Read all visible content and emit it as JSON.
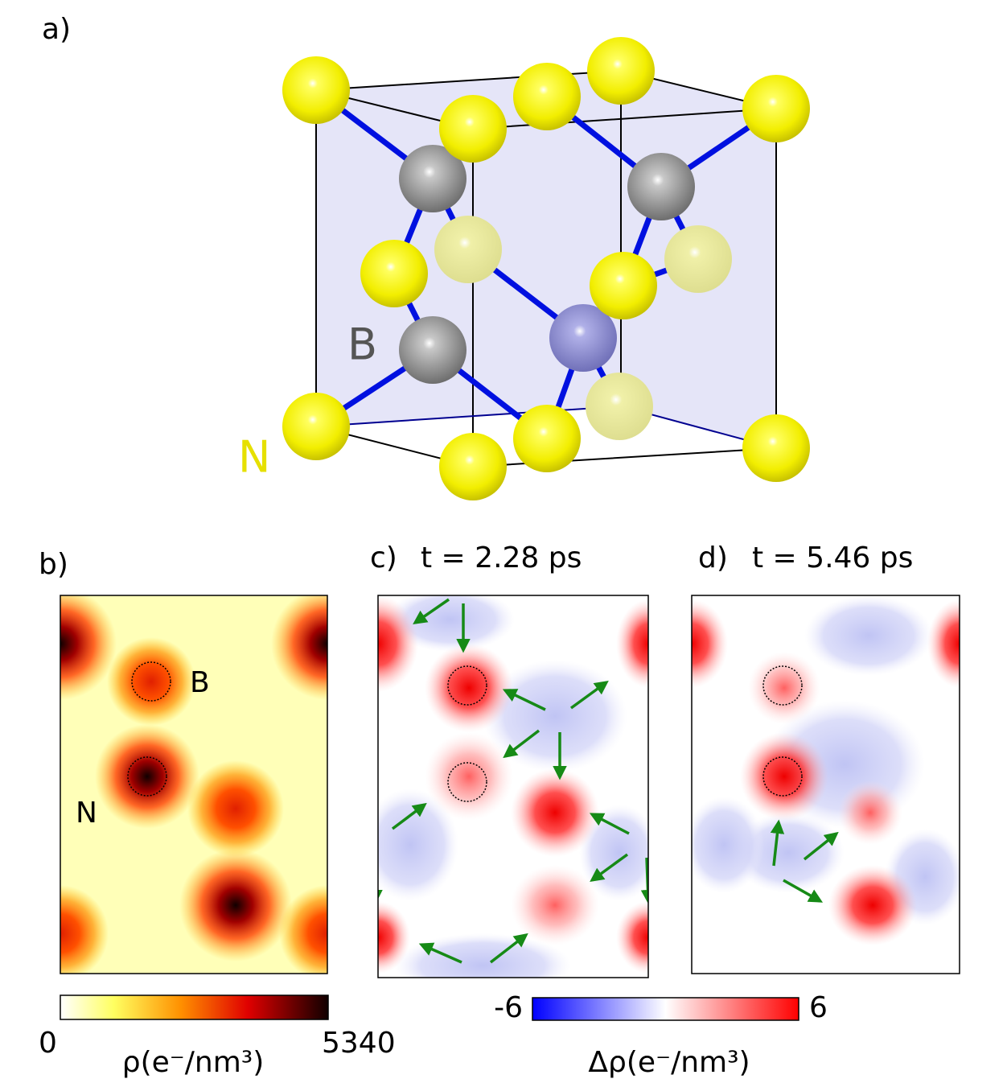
{
  "panel_a": {
    "label": "a)",
    "atom_labels": [
      "B",
      "N"
    ]
  },
  "panel_b": {
    "label": "b)",
    "atom_labels": [
      "B",
      "N"
    ]
  },
  "panel_c": {
    "label": "c)",
    "time": "t = 2.28 ps"
  },
  "panel_d": {
    "label": "d)",
    "time": "t = 5.46 ps"
  },
  "colorbar_density": {
    "min": 0,
    "max": 5340,
    "label": "ρ(e⁻/nm³)"
  },
  "colorbar_difference": {
    "min": -6,
    "max": 6,
    "label": "Δρ(e⁻/nm³)"
  }
}
